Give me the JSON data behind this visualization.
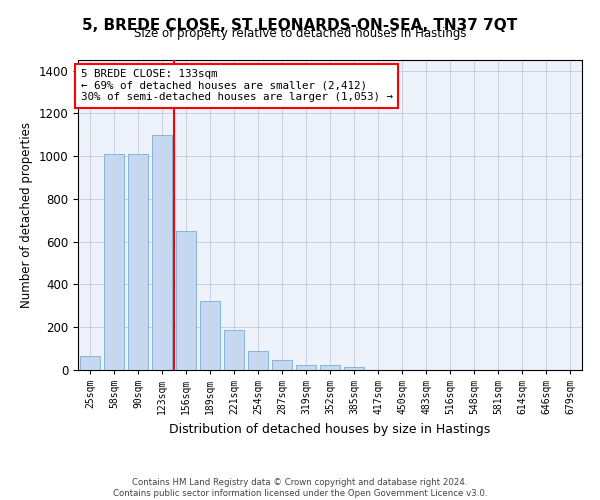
{
  "title": "5, BREDE CLOSE, ST LEONARDS-ON-SEA, TN37 7QT",
  "subtitle": "Size of property relative to detached houses in Hastings",
  "xlabel": "Distribution of detached houses by size in Hastings",
  "ylabel": "Number of detached properties",
  "bar_color": "#c5d8f0",
  "bar_edge_color": "#7aadd4",
  "categories": [
    "25sqm",
    "58sqm",
    "90sqm",
    "123sqm",
    "156sqm",
    "189sqm",
    "221sqm",
    "254sqm",
    "287sqm",
    "319sqm",
    "352sqm",
    "385sqm",
    "417sqm",
    "450sqm",
    "483sqm",
    "516sqm",
    "548sqm",
    "581sqm",
    "614sqm",
    "646sqm",
    "679sqm"
  ],
  "values": [
    65,
    1010,
    1010,
    1100,
    650,
    325,
    185,
    90,
    45,
    25,
    25,
    15,
    0,
    0,
    0,
    0,
    0,
    0,
    0,
    0,
    0
  ],
  "ylim": [
    0,
    1450
  ],
  "yticks": [
    0,
    200,
    400,
    600,
    800,
    1000,
    1200,
    1400
  ],
  "red_line_x": 3.5,
  "annotation_text": "5 BREDE CLOSE: 133sqm\n← 69% of detached houses are smaller (2,412)\n30% of semi-detached houses are larger (1,053) →",
  "footer_line1": "Contains HM Land Registry data © Crown copyright and database right 2024.",
  "footer_line2": "Contains public sector information licensed under the Open Government Licence v3.0.",
  "background_color": "#eef2fb",
  "grid_color": "#c8cfe0"
}
